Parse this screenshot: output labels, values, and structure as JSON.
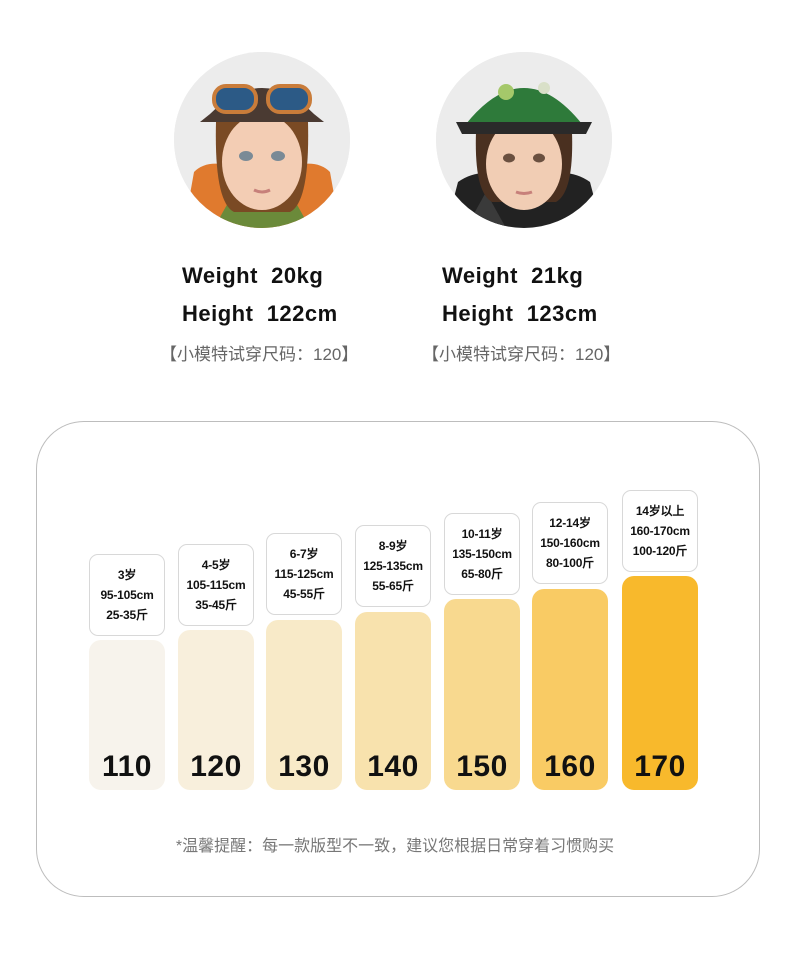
{
  "models": [
    {
      "weight_label": "Weight",
      "weight": "20kg",
      "height_label": "Height",
      "height": "122cm",
      "note": "【小模特试穿尺码：120】"
    },
    {
      "weight_label": "Weight",
      "weight": "21kg",
      "height_label": "Height",
      "height": "123cm",
      "note": "【小模特试穿尺码：120】"
    }
  ],
  "sizes": [
    {
      "size": "110",
      "age": "3岁",
      "height_range": "95-105cm",
      "weight_range": "25-35斤",
      "color": "#f7f3ec"
    },
    {
      "size": "120",
      "age": "4-5岁",
      "height_range": "105-115cm",
      "weight_range": "35-45斤",
      "color": "#f8efdc"
    },
    {
      "size": "130",
      "age": "6-7岁",
      "height_range": "115-125cm",
      "weight_range": "45-55斤",
      "color": "#f8eac8"
    },
    {
      "size": "140",
      "age": "8-9岁",
      "height_range": "125-135cm",
      "weight_range": "55-65斤",
      "color": "#f8e2ad"
    },
    {
      "size": "150",
      "age": "10-11岁",
      "height_range": "135-150cm",
      "weight_range": "65-80斤",
      "color": "#f8d98f"
    },
    {
      "size": "160",
      "age": "12-14岁",
      "height_range": "150-160cm",
      "weight_range": "80-100斤",
      "color": "#f9cb64"
    },
    {
      "size": "170",
      "age": "14岁以上",
      "height_range": "160-170cm",
      "weight_range": "100-120斤",
      "color": "#f8b92c"
    }
  ],
  "tip": "*温馨提醒：每一款版型不一致，建议您根据日常穿着习惯购买",
  "icons": [
    "girl-model-photo",
    "boy-model-photo"
  ]
}
